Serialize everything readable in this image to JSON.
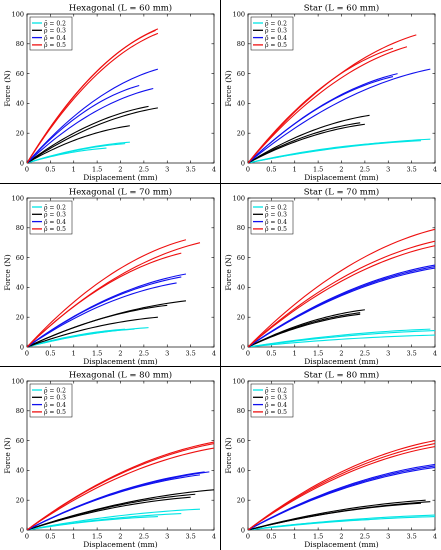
{
  "colors": {
    "rho_0_2": "#00e5e5",
    "rho_0_3": "#000000",
    "rho_0_4": "#1010ee",
    "rho_0_5": "#ee1010"
  },
  "chart_data": [
    {
      "type": "line",
      "title": "Hexagonal (L = 60 mm)",
      "xlabel": "Displacement (mm)",
      "ylabel": "Force (N)",
      "xlim": [
        0,
        4
      ],
      "ylim": [
        0,
        100
      ],
      "xticks": [
        "0",
        "0.5",
        "1",
        "1.5",
        "2",
        "2.5",
        "3",
        "3.5",
        "4"
      ],
      "yticks": [
        "0",
        "20",
        "40",
        "60",
        "80",
        "100"
      ],
      "legend": [
        "ρ̄ = 0.2",
        "ρ̄ = 0.3",
        "ρ̄ = 0.4",
        "ρ̄ = 0.5"
      ],
      "legend_position": "top-left",
      "series": [
        {
          "name": "ρ̄ = 0.2",
          "color": "rho_0_2",
          "curves": [
            {
              "xmax": 1.7,
              "ymax": 10
            },
            {
              "xmax": 2.1,
              "ymax": 13
            },
            {
              "xmax": 2.2,
              "ymax": 14
            }
          ]
        },
        {
          "name": "ρ̄ = 0.3",
          "color": "rho_0_3",
          "curves": [
            {
              "xmax": 2.2,
              "ymax": 25
            },
            {
              "xmax": 2.6,
              "ymax": 38
            },
            {
              "xmax": 2.8,
              "ymax": 37
            }
          ]
        },
        {
          "name": "ρ̄ = 0.4",
          "color": "rho_0_4",
          "curves": [
            {
              "xmax": 2.4,
              "ymax": 52
            },
            {
              "xmax": 2.7,
              "ymax": 50
            },
            {
              "xmax": 2.8,
              "ymax": 63
            }
          ]
        },
        {
          "name": "ρ̄ = 0.5",
          "color": "rho_0_5",
          "curves": [
            {
              "xmax": 2.75,
              "ymax": 89
            },
            {
              "xmax": 2.8,
              "ymax": 87
            },
            {
              "xmax": 2.8,
              "ymax": 90
            }
          ]
        }
      ]
    },
    {
      "type": "line",
      "title": "Star (L = 60 mm)",
      "xlabel": "Displacement (mm)",
      "ylabel": "Force (N)",
      "xlim": [
        0,
        4
      ],
      "ylim": [
        0,
        100
      ],
      "xticks": [
        "0",
        "0.5",
        "1",
        "1.5",
        "2",
        "2.5",
        "3",
        "3.5",
        "4"
      ],
      "yticks": [
        "0",
        "20",
        "40",
        "60",
        "80",
        "100"
      ],
      "legend": [
        "ρ̄ = 0.2",
        "ρ̄ = 0.3",
        "ρ̄ = 0.4",
        "ρ̄ = 0.5"
      ],
      "legend_position": "top-left",
      "series": [
        {
          "name": "ρ̄ = 0.2",
          "color": "rho_0_2",
          "curves": [
            {
              "xmax": 3.1,
              "ymax": 14
            },
            {
              "xmax": 3.7,
              "ymax": 15
            },
            {
              "xmax": 3.9,
              "ymax": 16
            }
          ]
        },
        {
          "name": "ρ̄ = 0.3",
          "color": "rho_0_3",
          "curves": [
            {
              "xmax": 2.4,
              "ymax": 27
            },
            {
              "xmax": 2.5,
              "ymax": 26
            },
            {
              "xmax": 2.6,
              "ymax": 32
            }
          ]
        },
        {
          "name": "ρ̄ = 0.4",
          "color": "rho_0_4",
          "curves": [
            {
              "xmax": 3.1,
              "ymax": 58
            },
            {
              "xmax": 3.2,
              "ymax": 60
            },
            {
              "xmax": 3.9,
              "ymax": 63
            }
          ]
        },
        {
          "name": "ρ̄ = 0.5",
          "color": "rho_0_5",
          "curves": [
            {
              "xmax": 3.1,
              "ymax": 77
            },
            {
              "xmax": 3.4,
              "ymax": 78
            },
            {
              "xmax": 3.6,
              "ymax": 86
            }
          ]
        }
      ]
    },
    {
      "type": "line",
      "title": "Hexagonal (L = 70 mm)",
      "xlabel": "Displacement (mm)",
      "ylabel": "Force (N)",
      "xlim": [
        0,
        4
      ],
      "ylim": [
        0,
        100
      ],
      "xticks": [
        "0",
        "0.5",
        "1",
        "1.5",
        "2",
        "2.5",
        "3",
        "3.5",
        "4"
      ],
      "yticks": [
        "0",
        "20",
        "40",
        "60",
        "80",
        "100"
      ],
      "legend": [
        "ρ̄ = 0.2",
        "ρ̄ = 0.3",
        "ρ̄ = 0.4",
        "ρ̄ = 0.5"
      ],
      "legend_position": "top-left",
      "series": [
        {
          "name": "ρ̄ = 0.2",
          "color": "rho_0_2",
          "curves": [
            {
              "xmax": 2.1,
              "ymax": 12
            },
            {
              "xmax": 2.3,
              "ymax": 12
            },
            {
              "xmax": 2.6,
              "ymax": 13
            }
          ]
        },
        {
          "name": "ρ̄ = 0.3",
          "color": "rho_0_3",
          "curves": [
            {
              "xmax": 2.8,
              "ymax": 20
            },
            {
              "xmax": 3.0,
              "ymax": 28
            },
            {
              "xmax": 3.4,
              "ymax": 31
            }
          ]
        },
        {
          "name": "ρ̄ = 0.4",
          "color": "rho_0_4",
          "curves": [
            {
              "xmax": 3.2,
              "ymax": 43
            },
            {
              "xmax": 3.3,
              "ymax": 47
            },
            {
              "xmax": 3.4,
              "ymax": 49
            }
          ]
        },
        {
          "name": "ρ̄ = 0.5",
          "color": "rho_0_5",
          "curves": [
            {
              "xmax": 3.3,
              "ymax": 63
            },
            {
              "xmax": 3.4,
              "ymax": 72
            },
            {
              "xmax": 3.7,
              "ymax": 70
            }
          ]
        }
      ]
    },
    {
      "type": "line",
      "title": "Star (L = 70 mm)",
      "xlabel": "Displacement (mm)",
      "ylabel": "Force (N)",
      "xlim": [
        0,
        4
      ],
      "ylim": [
        0,
        100
      ],
      "xticks": [
        "0",
        "0.5",
        "1",
        "1.5",
        "2",
        "2.5",
        "3",
        "3.5",
        "4"
      ],
      "yticks": [
        "0",
        "20",
        "40",
        "60",
        "80",
        "100"
      ],
      "legend": [
        "ρ̄ = 0.2",
        "ρ̄ = 0.3",
        "ρ̄ = 0.4",
        "ρ̄ = 0.5"
      ],
      "legend_position": "top-left",
      "series": [
        {
          "name": "ρ̄ = 0.2",
          "color": "rho_0_2",
          "curves": [
            {
              "xmax": 4.0,
              "ymax": 11
            },
            {
              "xmax": 3.9,
              "ymax": 12
            },
            {
              "xmax": 4.0,
              "ymax": 8
            }
          ]
        },
        {
          "name": "ρ̄ = 0.3",
          "color": "rho_0_3",
          "curves": [
            {
              "xmax": 2.4,
              "ymax": 22
            },
            {
              "xmax": 2.4,
              "ymax": 23
            },
            {
              "xmax": 2.5,
              "ymax": 25
            }
          ]
        },
        {
          "name": "ρ̄ = 0.4",
          "color": "rho_0_4",
          "curves": [
            {
              "xmax": 4.0,
              "ymax": 53
            },
            {
              "xmax": 4.0,
              "ymax": 54
            },
            {
              "xmax": 4.0,
              "ymax": 55
            }
          ]
        },
        {
          "name": "ρ̄ = 0.5",
          "color": "rho_0_5",
          "curves": [
            {
              "xmax": 4.0,
              "ymax": 68
            },
            {
              "xmax": 4.0,
              "ymax": 71
            },
            {
              "xmax": 4.0,
              "ymax": 79
            }
          ]
        }
      ]
    },
    {
      "type": "line",
      "title": "Hexagonal (L = 80 mm)",
      "xlabel": "Displacement (mm)",
      "ylabel": "Force (N)",
      "xlim": [
        0,
        4
      ],
      "ylim": [
        0,
        100
      ],
      "xticks": [
        "0",
        "0.5",
        "1",
        "1.5",
        "2",
        "2.5",
        "3",
        "3.5",
        "4"
      ],
      "yticks": [
        "0",
        "20",
        "40",
        "60",
        "80",
        "100"
      ],
      "legend": [
        "ρ̄ = 0.2",
        "ρ̄ = 0.3",
        "ρ̄ = 0.4",
        "ρ̄ = 0.5"
      ],
      "legend_position": "top-left",
      "series": [
        {
          "name": "ρ̄ = 0.2",
          "color": "rho_0_2",
          "curves": [
            {
              "xmax": 2.8,
              "ymax": 9
            },
            {
              "xmax": 3.3,
              "ymax": 11
            },
            {
              "xmax": 3.7,
              "ymax": 14
            }
          ]
        },
        {
          "name": "ρ̄ = 0.3",
          "color": "rho_0_3",
          "curves": [
            {
              "xmax": 3.5,
              "ymax": 22
            },
            {
              "xmax": 3.6,
              "ymax": 24
            },
            {
              "xmax": 4.0,
              "ymax": 27
            }
          ]
        },
        {
          "name": "ρ̄ = 0.4",
          "color": "rho_0_4",
          "curves": [
            {
              "xmax": 3.7,
              "ymax": 37
            },
            {
              "xmax": 3.8,
              "ymax": 39
            },
            {
              "xmax": 3.9,
              "ymax": 39
            }
          ]
        },
        {
          "name": "ρ̄ = 0.5",
          "color": "rho_0_5",
          "curves": [
            {
              "xmax": 4.0,
              "ymax": 55
            },
            {
              "xmax": 4.0,
              "ymax": 58
            },
            {
              "xmax": 4.0,
              "ymax": 59
            }
          ]
        }
      ]
    },
    {
      "type": "line",
      "title": "Star (L = 80 mm)",
      "xlabel": "Displacement (mm)",
      "ylabel": "Force (N)",
      "xlim": [
        0,
        4
      ],
      "ylim": [
        0,
        100
      ],
      "xticks": [
        "0",
        "0.5",
        "1",
        "1.5",
        "2",
        "2.5",
        "3",
        "3.5",
        "4"
      ],
      "yticks": [
        "0",
        "20",
        "40",
        "60",
        "80",
        "100"
      ],
      "legend": [
        "ρ̄ = 0.2",
        "ρ̄ = 0.3",
        "ρ̄ = 0.4",
        "ρ̄ = 0.5"
      ],
      "legend_position": "top-left",
      "series": [
        {
          "name": "ρ̄ = 0.2",
          "color": "rho_0_2",
          "curves": [
            {
              "xmax": 2.6,
              "ymax": 7
            },
            {
              "xmax": 4.0,
              "ymax": 9
            },
            {
              "xmax": 4.0,
              "ymax": 10
            }
          ]
        },
        {
          "name": "ρ̄ = 0.3",
          "color": "rho_0_3",
          "curves": [
            {
              "xmax": 3.7,
              "ymax": 18
            },
            {
              "xmax": 3.9,
              "ymax": 19
            },
            {
              "xmax": 3.8,
              "ymax": 20
            }
          ]
        },
        {
          "name": "ρ̄ = 0.4",
          "color": "rho_0_4",
          "curves": [
            {
              "xmax": 4.0,
              "ymax": 42
            },
            {
              "xmax": 4.0,
              "ymax": 43
            },
            {
              "xmax": 4.0,
              "ymax": 44
            }
          ]
        },
        {
          "name": "ρ̄ = 0.5",
          "color": "rho_0_5",
          "curves": [
            {
              "xmax": 4.0,
              "ymax": 56
            },
            {
              "xmax": 4.0,
              "ymax": 58
            },
            {
              "xmax": 4.0,
              "ymax": 60
            }
          ]
        }
      ]
    }
  ]
}
